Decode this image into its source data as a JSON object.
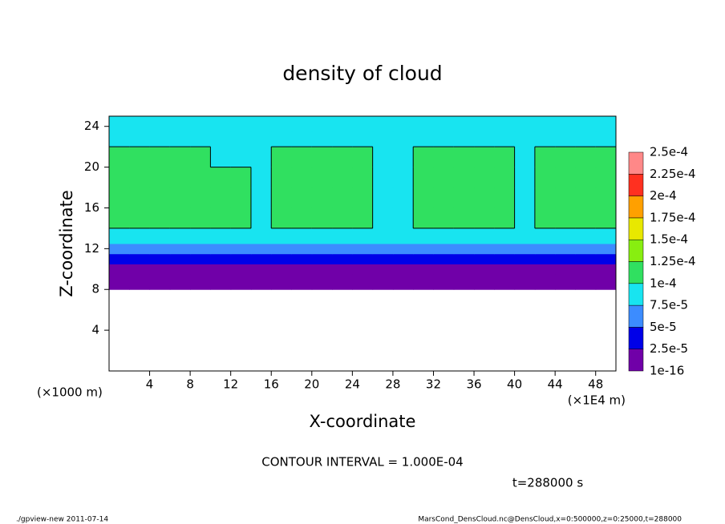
{
  "chart_data": {
    "type": "heatmap",
    "title": "density of cloud",
    "x_label": "X-coordinate",
    "y_label": "Z-coordinate",
    "x_unit": "(×1E4 m)",
    "y_unit": "(×1000 m)",
    "xlim": [
      0,
      50
    ],
    "ylim": [
      0,
      25
    ],
    "xticks": [
      4,
      8,
      12,
      16,
      20,
      24,
      28,
      32,
      36,
      40,
      44,
      48
    ],
    "yticks": [
      4,
      8,
      12,
      16,
      20,
      24
    ],
    "x_edges": [
      0,
      2,
      4,
      6,
      8,
      10,
      12,
      14,
      16,
      18,
      20,
      22,
      24,
      26,
      28,
      30,
      32,
      34,
      36,
      38,
      40,
      42,
      44,
      46,
      48,
      50
    ],
    "z_edges": [
      8,
      9.5,
      10.5,
      11.5,
      12.5,
      14,
      16,
      18,
      20,
      22,
      23.5,
      25
    ],
    "values": [
      [
        1.5e-05,
        1.5e-05,
        1.5e-05,
        1.5e-05,
        1.5e-05,
        1.5e-05,
        1.5e-05,
        1.5e-05,
        1.5e-05,
        1.5e-05,
        1.5e-05,
        1.5e-05,
        1.5e-05,
        1.5e-05,
        1.5e-05,
        1.5e-05,
        1.5e-05,
        1.5e-05,
        1.5e-05,
        1.5e-05,
        1.5e-05,
        1.5e-05,
        1.5e-05,
        1.5e-05,
        1.5e-05
      ],
      [
        2.2e-05,
        2.2e-05,
        2.2e-05,
        2.2e-05,
        2.2e-05,
        2.2e-05,
        2.2e-05,
        2.2e-05,
        2.2e-05,
        2.2e-05,
        2.2e-05,
        2.2e-05,
        2.2e-05,
        2.2e-05,
        2.2e-05,
        2.2e-05,
        2.2e-05,
        2.2e-05,
        2.2e-05,
        2.2e-05,
        2.2e-05,
        2.2e-05,
        2.2e-05,
        2.2e-05,
        2.2e-05
      ],
      [
        4e-05,
        4e-05,
        4e-05,
        4e-05,
        4e-05,
        4e-05,
        4e-05,
        4e-05,
        4e-05,
        4e-05,
        4e-05,
        4e-05,
        4e-05,
        4e-05,
        4e-05,
        4e-05,
        4e-05,
        4e-05,
        4e-05,
        4e-05,
        4e-05,
        4e-05,
        4e-05,
        4e-05,
        4e-05
      ],
      [
        6.5e-05,
        6.5e-05,
        6.5e-05,
        6.5e-05,
        6.5e-05,
        6.5e-05,
        6.5e-05,
        6.5e-05,
        6.5e-05,
        6.5e-05,
        6.5e-05,
        6.5e-05,
        6.5e-05,
        6.5e-05,
        6.5e-05,
        6.5e-05,
        6.5e-05,
        6.5e-05,
        6.5e-05,
        6.5e-05,
        6.5e-05,
        6.5e-05,
        6.5e-05,
        6.5e-05,
        6.5e-05
      ],
      [
        8.5e-05,
        8.5e-05,
        8.5e-05,
        8.5e-05,
        8.5e-05,
        8.5e-05,
        8.5e-05,
        8.5e-05,
        8.5e-05,
        8.5e-05,
        8.5e-05,
        8.5e-05,
        8.5e-05,
        8.5e-05,
        8.5e-05,
        8.5e-05,
        8.5e-05,
        8.5e-05,
        8.5e-05,
        8.5e-05,
        8.5e-05,
        8.5e-05,
        8.5e-05,
        8.5e-05,
        8.5e-05
      ],
      [
        0.000105,
        0.000105,
        0.000105,
        0.000105,
        0.000105,
        0.000105,
        0.000105,
        8.5e-05,
        0.000105,
        0.000105,
        0.000105,
        0.000105,
        0.000105,
        8.5e-05,
        8.5e-05,
        0.000105,
        0.000105,
        0.000105,
        0.000105,
        0.000105,
        8.5e-05,
        0.000105,
        0.000105,
        0.000105,
        0.000105
      ],
      [
        0.00011,
        0.00011,
        0.00011,
        0.00011,
        0.00011,
        0.00011,
        0.00011,
        8.8e-05,
        0.00011,
        0.00011,
        0.00011,
        0.00011,
        0.00011,
        8.8e-05,
        8.8e-05,
        0.00011,
        0.00011,
        0.00011,
        0.00011,
        0.00011,
        8.8e-05,
        0.00011,
        0.00011,
        0.00011,
        0.00011
      ],
      [
        0.00011,
        0.00011,
        0.00011,
        0.00011,
        0.00011,
        0.00011,
        0.00011,
        8.8e-05,
        0.00011,
        0.00011,
        0.00011,
        0.00011,
        0.00011,
        8.8e-05,
        8.8e-05,
        0.00011,
        0.00011,
        0.00011,
        0.00011,
        0.00011,
        8.8e-05,
        0.00011,
        0.00011,
        0.00011,
        0.00011
      ],
      [
        0.000102,
        0.000102,
        0.000102,
        0.000102,
        0.000102,
        9e-05,
        9e-05,
        9e-05,
        0.000102,
        0.000102,
        0.000102,
        0.000102,
        0.000102,
        9e-05,
        9e-05,
        0.000102,
        0.000102,
        0.000102,
        0.000102,
        0.000102,
        9e-05,
        0.000102,
        0.000102,
        0.000102,
        0.000102
      ],
      [
        8.5e-05,
        8.5e-05,
        8.5e-05,
        8.5e-05,
        8.5e-05,
        8.5e-05,
        8.5e-05,
        8.5e-05,
        8.5e-05,
        8.5e-05,
        8.5e-05,
        8.5e-05,
        8.5e-05,
        8.5e-05,
        8.5e-05,
        8.5e-05,
        8.5e-05,
        8.5e-05,
        8.5e-05,
        8.5e-05,
        8.5e-05,
        8.5e-05,
        8.5e-05,
        8.5e-05,
        8.5e-05
      ],
      [
        7.8e-05,
        7.8e-05,
        7.8e-05,
        7.8e-05,
        7.8e-05,
        7.8e-05,
        7.8e-05,
        7.8e-05,
        7.8e-05,
        7.8e-05,
        7.8e-05,
        7.8e-05,
        7.8e-05,
        7.8e-05,
        7.8e-05,
        7.8e-05,
        7.8e-05,
        7.8e-05,
        7.8e-05,
        7.8e-05,
        7.8e-05,
        7.8e-05,
        7.8e-05,
        7.8e-05,
        7.8e-05
      ]
    ],
    "levels": [
      1e-16,
      {
        "value": 2.5e-05,
        "label": "2.5e-5"
      },
      {
        "value": 5e-05,
        "label": "5e-5"
      },
      {
        "value": 7.5e-05,
        "label": "7.5e-5"
      },
      {
        "value": 0.0001,
        "label": "1e-4"
      },
      {
        "value": 0.000125,
        "label": "1.25e-4"
      },
      {
        "value": 0.00015,
        "label": "1.5e-4"
      },
      {
        "value": 0.000175,
        "label": "1.75e-4"
      },
      {
        "value": 0.0002,
        "label": "2e-4"
      },
      {
        "value": 0.000225,
        "label": "2.25e-4"
      },
      {
        "value": 0.00025,
        "label": "2.5e-4"
      }
    ],
    "colors": [
      "#7000a8",
      "#0000e8",
      "#3c8cff",
      "#18e4f0",
      "#30e060",
      "#88ee10",
      "#e8e800",
      "#ffa000",
      "#ff3020",
      "#ff8888"
    ],
    "contour_interval": {
      "value": 0.0001,
      "label": "CONTOUR INTERVAL = 1.000E-04"
    },
    "time_label": "t=288000 s",
    "footer_left": "./gpview-new  2011-07-14",
    "footer_right": "MarsCond_DensCloud.nc@DensCloud,x=0:500000,z=0:25000,t=288000"
  }
}
